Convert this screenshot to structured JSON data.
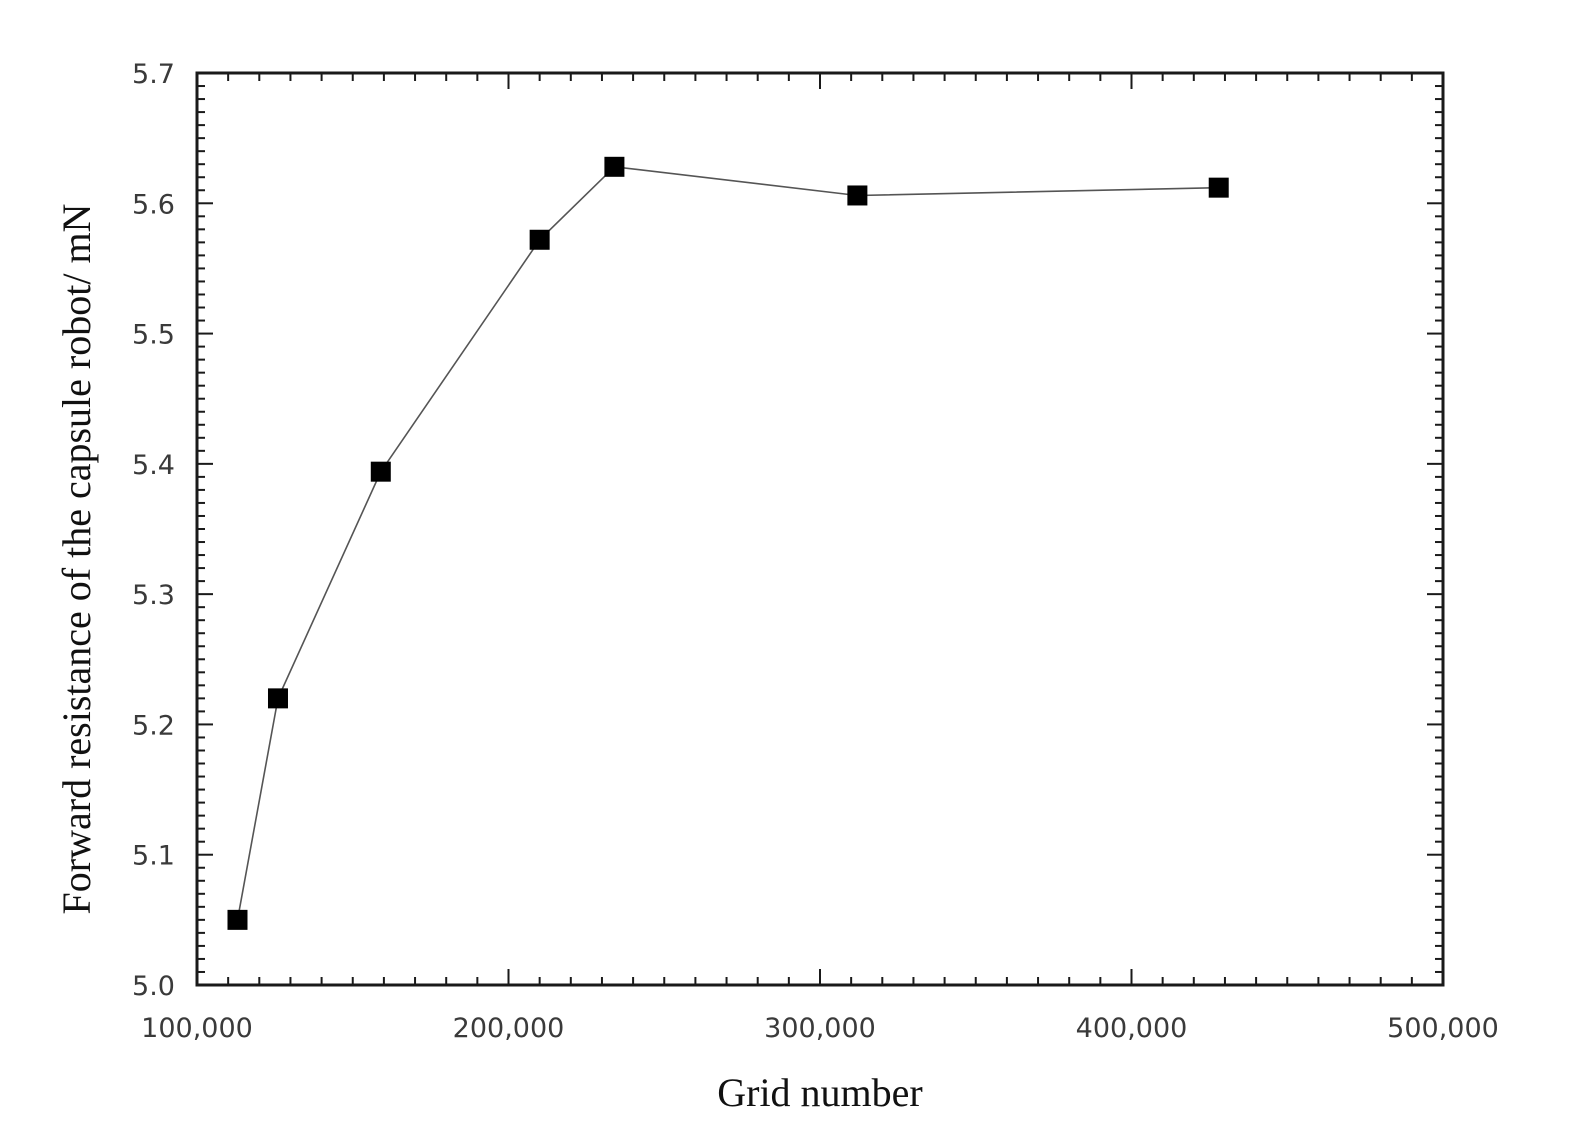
{
  "chart_data": {
    "type": "line",
    "title": "",
    "xlabel": "Grid number",
    "ylabel": "Forward resistance of the capsule robot/ mN",
    "xlim": [
      100000,
      500000
    ],
    "ylim": [
      5.0,
      5.7
    ],
    "x_ticks": [
      100000,
      200000,
      300000,
      400000,
      500000
    ],
    "x_tick_labels": [
      "100,000",
      "200,000",
      "300,000",
      "400,000",
      "500,000"
    ],
    "y_ticks": [
      5.0,
      5.1,
      5.2,
      5.3,
      5.4,
      5.5,
      5.6,
      5.7
    ],
    "y_tick_labels": [
      "5.0",
      "5.1",
      "5.2",
      "5.3",
      "5.4",
      "5.5",
      "5.6",
      "5.7"
    ],
    "grid": false,
    "legend": "none",
    "marker": "square",
    "series": [
      {
        "x": [
          113000,
          126000,
          159000,
          210000,
          234000,
          312000,
          428000
        ],
        "y": [
          5.05,
          5.22,
          5.394,
          5.572,
          5.628,
          5.606,
          5.612
        ]
      }
    ],
    "colors": {
      "line": "#555555",
      "marker": "#000000",
      "frame": "#1a1a1a"
    }
  }
}
